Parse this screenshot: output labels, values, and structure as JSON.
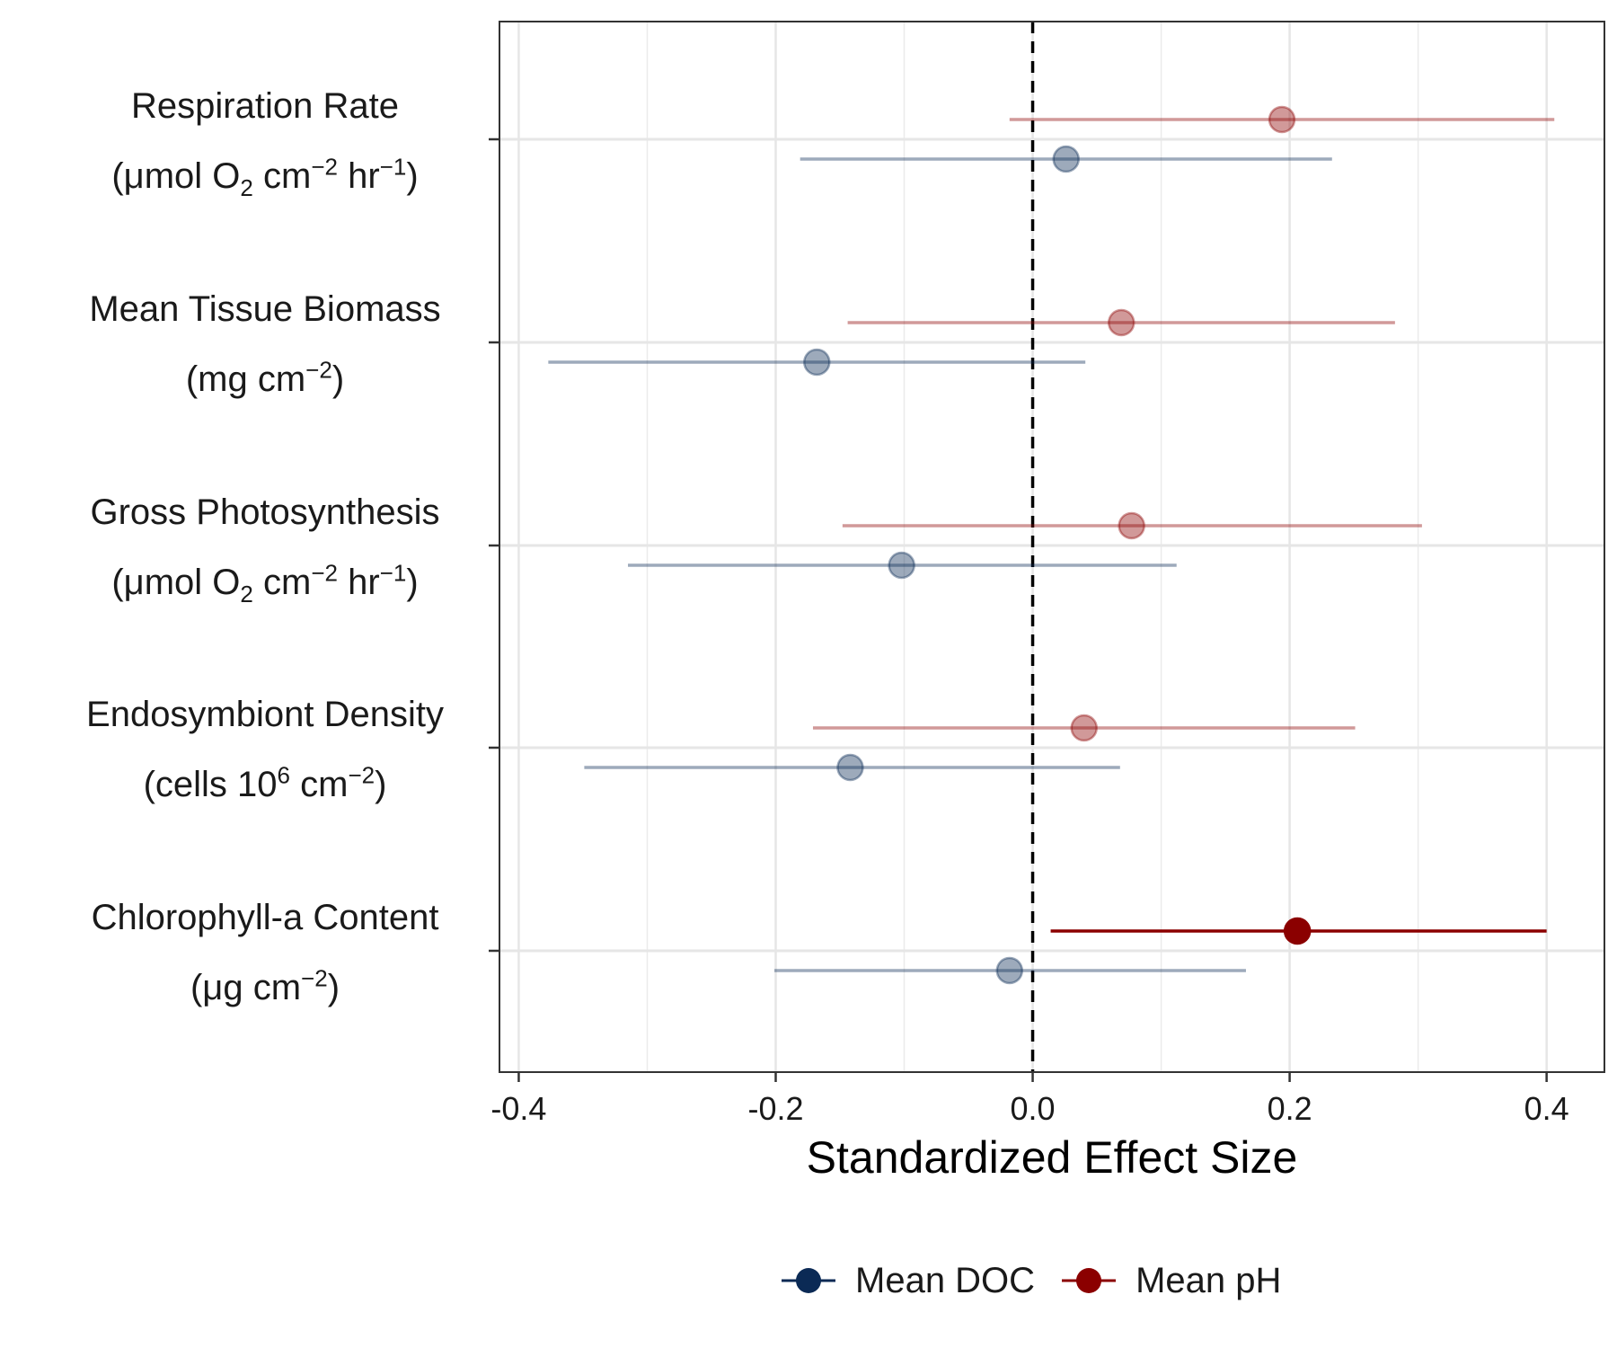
{
  "chart_data": {
    "type": "scatter",
    "xlabel": "Standardized Effect Size",
    "ylabel": "",
    "xlim": [
      -0.415,
      0.445
    ],
    "x_ticks": [
      -0.4,
      -0.2,
      0.0,
      0.2,
      0.4
    ],
    "x_tick_labels": [
      "-0.4",
      "-0.2",
      "0.0",
      "0.2",
      "0.4"
    ],
    "reference_line_x": 0.0,
    "grid": true,
    "legend_position": "bottom",
    "categories": [
      {
        "name": "Respiration Rate",
        "unit_html": "(μmol O<sub>2</sub> cm<sup>−2</sup> hr<sup>−1</sup>)"
      },
      {
        "name": "Mean Tissue Biomass",
        "unit_html": "(mg cm<sup>−2</sup>)"
      },
      {
        "name": "Gross Photosynthesis",
        "unit_html": "(μmol O<sub>2</sub> cm<sup>−2</sup> hr<sup>−1</sup>)"
      },
      {
        "name": "Endosymbiont Density",
        "unit_html": "(cells 10<sup>6</sup> cm<sup>−2</sup>)"
      },
      {
        "name": "Chlorophyll-a Content",
        "unit_html": "(μg cm<sup>−2</sup>)"
      }
    ],
    "series": [
      {
        "name": "Mean DOC",
        "color": "#0b2a55",
        "estimates": [
          0.026,
          -0.168,
          -0.102,
          -0.142,
          -0.018
        ],
        "ci_low": [
          -0.181,
          -0.377,
          -0.315,
          -0.349,
          -0.201
        ],
        "ci_high": [
          0.233,
          0.041,
          0.112,
          0.068,
          0.166
        ],
        "significant": [
          false,
          false,
          false,
          false,
          false
        ]
      },
      {
        "name": "Mean pH",
        "color": "#8b0000",
        "estimates": [
          0.194,
          0.069,
          0.077,
          0.04,
          0.206
        ],
        "ci_low": [
          -0.018,
          -0.144,
          -0.148,
          -0.171,
          0.014
        ],
        "ci_high": [
          0.406,
          0.282,
          0.303,
          0.251,
          0.4
        ],
        "significant": [
          false,
          false,
          false,
          false,
          true
        ]
      }
    ]
  }
}
